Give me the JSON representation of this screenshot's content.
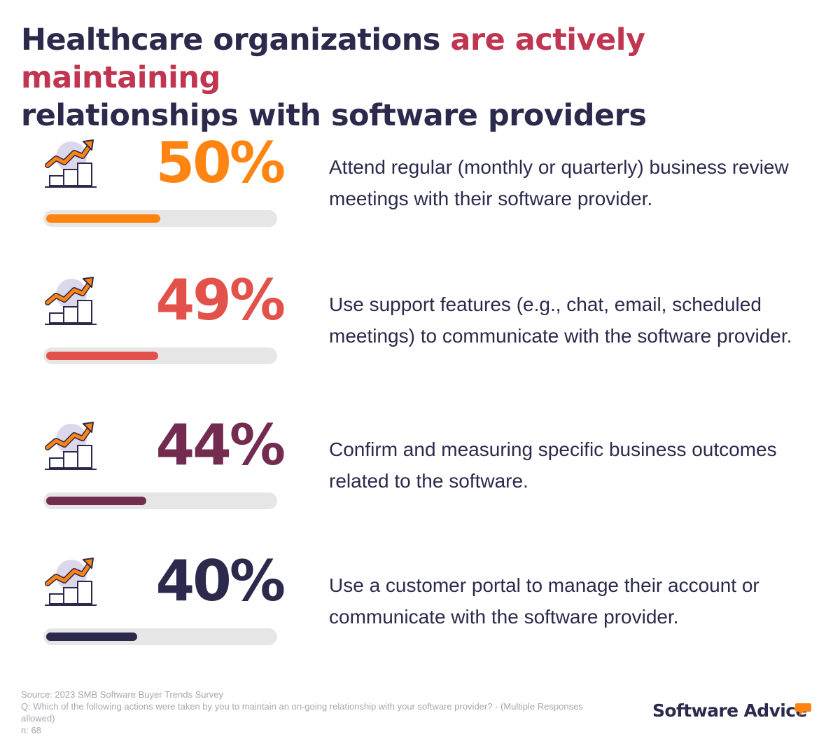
{
  "title": {
    "part1": "Healthcare organizations ",
    "highlight": "are actively maintaining",
    "part2": "relationships with software providers"
  },
  "colors": {
    "title_dark": "#2b2a4c",
    "title_highlight": "#c0354f",
    "track": "#e6e6e6",
    "icon": "growth-chart-icon"
  },
  "chart_data": {
    "type": "bar",
    "orientation": "horizontal",
    "xlim": [
      0,
      100
    ],
    "items": [
      {
        "label": "50%",
        "value": 50,
        "color": "#ff8412",
        "description": "Attend regular (monthly or quarterly) business review meetings with their software provider."
      },
      {
        "label": "49%",
        "value": 49,
        "color": "#e3524a",
        "description": "Use support features (e.g., chat, email, scheduled meetings) to communicate with the software provider."
      },
      {
        "label": "44%",
        "value": 44,
        "color": "#732c50",
        "description": "Confirm and measuring specific business outcomes related to the software."
      },
      {
        "label": "40%",
        "value": 40,
        "color": "#2b2a4c",
        "description": "Use a customer portal to manage their account or communicate with the software provider."
      }
    ]
  },
  "footer": {
    "source": "Source: 2023 SMB Software Buyer Trends Survey",
    "question": "Q: Which of the following actions were taken by you to maintain an on-going relationship with your software provider? - (Multiple Responses allowed)",
    "n": "n: 68"
  },
  "brand": {
    "name": "Software Advice",
    "logo_color": "#ff8412"
  }
}
